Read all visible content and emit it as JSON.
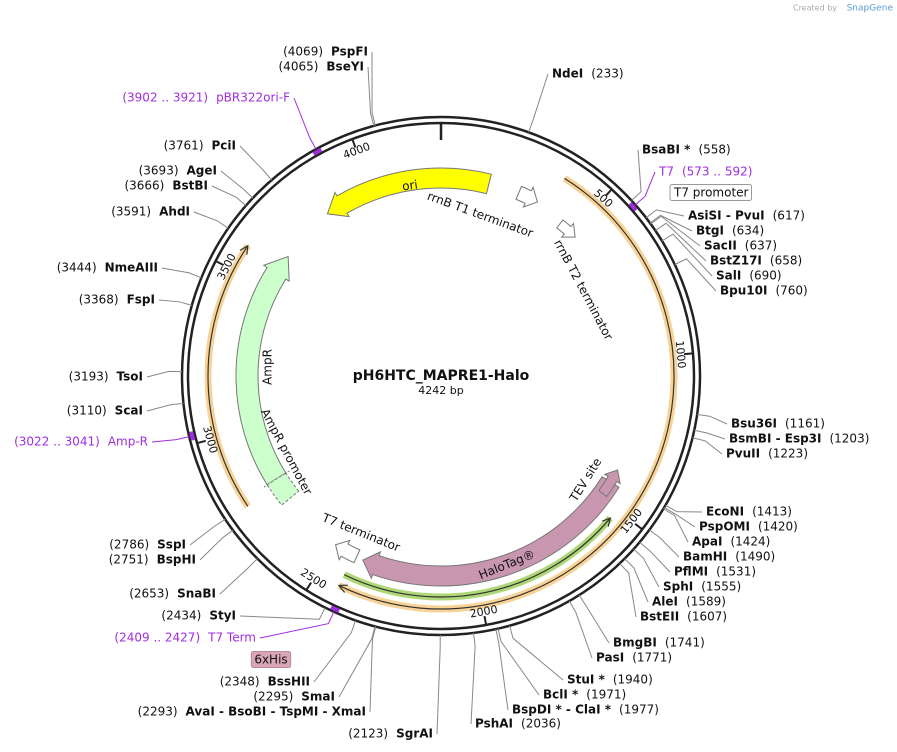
{
  "credit": {
    "prefix": "Created by",
    "brand": "SnapGene"
  },
  "map": {
    "name": "pH6HTC_MAPRE1-Halo",
    "length": "4242 bp",
    "ticks": [
      500,
      1000,
      1500,
      2000,
      2500,
      3000,
      3500,
      4000
    ]
  },
  "sites": [
    {
      "name": "PspFI",
      "position": "(4069)"
    },
    {
      "name": "BseYI",
      "position": "(4065)"
    },
    {
      "name": "PciI",
      "position": "(3761)"
    },
    {
      "name": "AgeI",
      "position": "(3693)"
    },
    {
      "name": "BstBI",
      "position": "(3666)"
    },
    {
      "name": "AhdI",
      "position": "(3591)"
    },
    {
      "name": "NmeAIII",
      "position": "(3444)"
    },
    {
      "name": "FspI",
      "position": "(3368)"
    },
    {
      "name": "TsoI",
      "position": "(3193)"
    },
    {
      "name": "ScaI",
      "position": "(3110)"
    },
    {
      "name": "SspI",
      "position": "(2786)"
    },
    {
      "name": "BspHI",
      "position": "(2751)"
    },
    {
      "name": "SnaBI",
      "position": "(2653)"
    },
    {
      "name": "StyI",
      "position": "(2434)"
    },
    {
      "name": "BssHII",
      "position": "(2348)"
    },
    {
      "name": "SmaI",
      "position": "(2295)"
    },
    {
      "name": "AvaI  -  BsoBI  -  TspMI  -  XmaI",
      "position": "(2293)"
    },
    {
      "name": "SgrAI",
      "position": "(2123)"
    },
    {
      "name": "PshAI",
      "position": "(2036)"
    },
    {
      "name": "BspDI *  -  ClaI *",
      "position": "(1977)"
    },
    {
      "name": "BclI *",
      "position": "(1971)"
    },
    {
      "name": "StuI *",
      "position": "(1940)"
    },
    {
      "name": "PasI",
      "position": "(1771)"
    },
    {
      "name": "BmgBI",
      "position": "(1741)"
    },
    {
      "name": "BstEII",
      "position": "(1607)"
    },
    {
      "name": "AleI",
      "position": "(1589)"
    },
    {
      "name": "SphI",
      "position": "(1555)"
    },
    {
      "name": "PflMI",
      "position": "(1531)"
    },
    {
      "name": "BamHI",
      "position": "(1490)"
    },
    {
      "name": "ApaI",
      "position": "(1424)"
    },
    {
      "name": "PspOMI",
      "position": "(1420)"
    },
    {
      "name": "EcoNI",
      "position": "(1413)"
    },
    {
      "name": "PvuII",
      "position": "(1223)"
    },
    {
      "name": "BsmBI  -  Esp3I",
      "position": "(1203)"
    },
    {
      "name": "Bsu36I",
      "position": "(1161)"
    },
    {
      "name": "Bpu10I",
      "position": "(760)"
    },
    {
      "name": "SalI",
      "position": "(690)"
    },
    {
      "name": "BstZ17I",
      "position": "(658)"
    },
    {
      "name": "SacII",
      "position": "(637)"
    },
    {
      "name": "BtgI",
      "position": "(634)"
    },
    {
      "name": "AsiSI  -  PvuI",
      "position": "(617)"
    },
    {
      "name": "BsaBI *",
      "position": "(558)"
    },
    {
      "name": "NdeI",
      "position": "(233)"
    }
  ],
  "primers": [
    {
      "name": "pBR322ori-F",
      "position": "(3902 .. 3921)"
    },
    {
      "name": "Amp-R",
      "position": "(3022 .. 3041)"
    },
    {
      "name": "T7 Term",
      "position": "(2409 .. 2427)"
    },
    {
      "name": "T7",
      "position": "(573 .. 592)"
    }
  ],
  "primer_color": "#a02ee0",
  "boxed_features": [
    "T7 promoter",
    "6xHis"
  ],
  "features": [
    "ori",
    "rrnB T1 terminator",
    "rrnB T2 terminator",
    "AmpR",
    "AmpR promoter",
    "T7 terminator",
    "TEV site",
    "HaloTag®"
  ]
}
